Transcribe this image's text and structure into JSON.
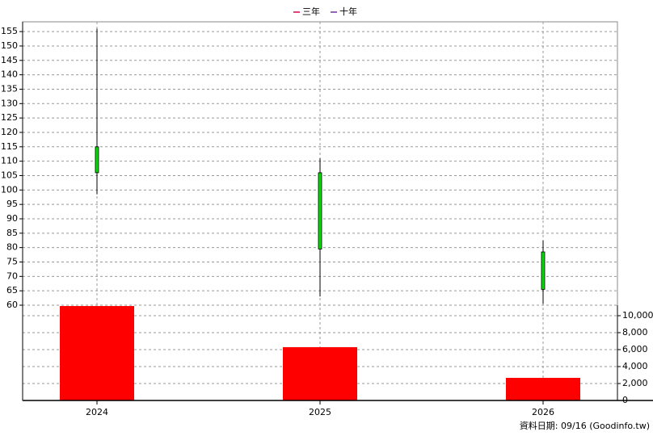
{
  "chart_data": {
    "type": "candlestick",
    "legend": [
      {
        "name": "三年",
        "color": "#e0004d"
      },
      {
        "name": "十年",
        "color": "#7030a0"
      }
    ],
    "categories": [
      "2024",
      "2025",
      "2026"
    ],
    "open": [
      115,
      106,
      78.5
    ],
    "high": [
      156,
      111,
      82.5
    ],
    "low": [
      98.5,
      63,
      60.5
    ],
    "close": [
      106,
      79.5,
      65.5
    ],
    "candle_color": "#00e000",
    "volume": {
      "values": [
        11140,
        6290,
        2670
      ],
      "color": "#ff0000",
      "axis": "y2"
    },
    "ylim": [
      60,
      158.4
    ],
    "yticks": [
      60,
      65,
      70,
      75,
      80,
      85,
      90,
      95,
      100,
      105,
      110,
      115,
      120,
      125,
      130,
      135,
      140,
      145,
      150,
      155
    ],
    "y2lim": [
      0,
      11238
    ],
    "y2ticks": [
      0,
      {
        "value": 2000,
        "label": "2,000"
      },
      {
        "value": 4000,
        "label": "4,000"
      },
      {
        "value": 6000,
        "label": "6,000"
      },
      {
        "value": 8000,
        "label": "8,000"
      },
      {
        "value": 10000,
        "label": "10,000"
      }
    ],
    "grid": true,
    "footnote": "資料日期: 09/16  (Goodinfo.tw)"
  }
}
